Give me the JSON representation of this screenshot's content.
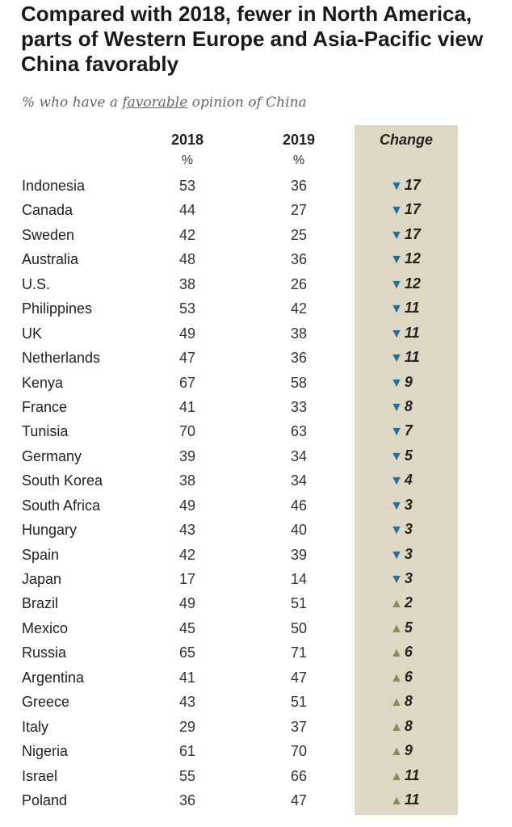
{
  "title": "Compared with 2018, fewer in North America, parts of Western Europe and Asia-Pacific view China favorably",
  "subtitle": {
    "pre": "% who have a ",
    "emph": "favorable",
    "post": " opinion of China"
  },
  "headers": {
    "col2018": "2018",
    "col2019": "2019",
    "change": "Change",
    "unit2018": "%",
    "unit2019": "%"
  },
  "colors": {
    "down": "#1f6fa3",
    "up": "#8c8a5a",
    "change_bg": "#ddd7c4"
  },
  "icons": {
    "down": "down-triangle-icon",
    "up": "up-triangle-icon"
  },
  "chart_data": {
    "type": "table",
    "title": "Compared with 2018, fewer in North America, parts of Western Europe and Asia-Pacific view China favorably",
    "subtitle": "% who have a favorable opinion of China",
    "columns": [
      "",
      "2018",
      "2019",
      "Change"
    ],
    "rows": [
      {
        "country": "Indonesia",
        "y2018": 53,
        "y2019": 36,
        "change": -17
      },
      {
        "country": "Canada",
        "y2018": 44,
        "y2019": 27,
        "change": -17
      },
      {
        "country": "Sweden",
        "y2018": 42,
        "y2019": 25,
        "change": -17
      },
      {
        "country": "Australia",
        "y2018": 48,
        "y2019": 36,
        "change": -12
      },
      {
        "country": "U.S.",
        "y2018": 38,
        "y2019": 26,
        "change": -12
      },
      {
        "country": "Philippines",
        "y2018": 53,
        "y2019": 42,
        "change": -11
      },
      {
        "country": "UK",
        "y2018": 49,
        "y2019": 38,
        "change": -11
      },
      {
        "country": "Netherlands",
        "y2018": 47,
        "y2019": 36,
        "change": -11
      },
      {
        "country": "Kenya",
        "y2018": 67,
        "y2019": 58,
        "change": -9
      },
      {
        "country": "France",
        "y2018": 41,
        "y2019": 33,
        "change": -8
      },
      {
        "country": "Tunisia",
        "y2018": 70,
        "y2019": 63,
        "change": -7
      },
      {
        "country": "Germany",
        "y2018": 39,
        "y2019": 34,
        "change": -5
      },
      {
        "country": "South Korea",
        "y2018": 38,
        "y2019": 34,
        "change": -4
      },
      {
        "country": "South Africa",
        "y2018": 49,
        "y2019": 46,
        "change": -3
      },
      {
        "country": "Hungary",
        "y2018": 43,
        "y2019": 40,
        "change": -3
      },
      {
        "country": "Spain",
        "y2018": 42,
        "y2019": 39,
        "change": -3
      },
      {
        "country": "Japan",
        "y2018": 17,
        "y2019": 14,
        "change": -3
      },
      {
        "country": "Brazil",
        "y2018": 49,
        "y2019": 51,
        "change": 2
      },
      {
        "country": "Mexico",
        "y2018": 45,
        "y2019": 50,
        "change": 5
      },
      {
        "country": "Russia",
        "y2018": 65,
        "y2019": 71,
        "change": 6
      },
      {
        "country": "Argentina",
        "y2018": 41,
        "y2019": 47,
        "change": 6
      },
      {
        "country": "Greece",
        "y2018": 43,
        "y2019": 51,
        "change": 8
      },
      {
        "country": "Italy",
        "y2018": 29,
        "y2019": 37,
        "change": 8
      },
      {
        "country": "Nigeria",
        "y2018": 61,
        "y2019": 70,
        "change": 9
      },
      {
        "country": "Israel",
        "y2018": 55,
        "y2019": 66,
        "change": 11
      },
      {
        "country": "Poland",
        "y2018": 36,
        "y2019": 47,
        "change": 11
      }
    ]
  }
}
